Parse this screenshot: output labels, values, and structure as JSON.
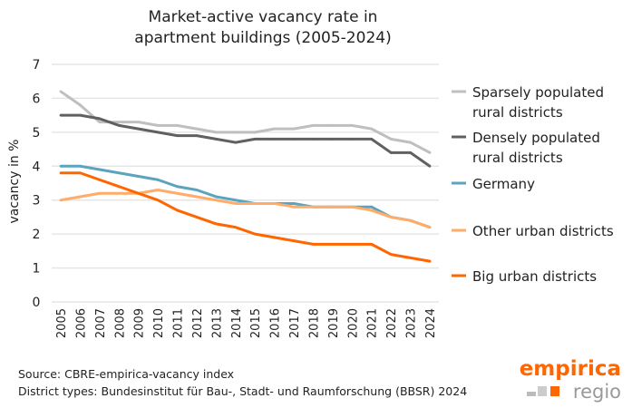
{
  "chart_data": {
    "type": "line",
    "title": "Market-active vacancy rate in apartment buildings (2005-2024)",
    "title_lines": [
      "Market-active vacancy rate in",
      "apartment buildings (2005-2024)"
    ],
    "ylabel": "vacancy in %",
    "ylim": [
      0,
      7
    ],
    "yticks": [
      "0",
      "1",
      "2",
      "3",
      "4",
      "5",
      "6",
      "7"
    ],
    "grid": true,
    "legend_placement": "right",
    "x": [
      "2005",
      "2006",
      "2007",
      "2008",
      "2009",
      "2010",
      "2011",
      "2012",
      "2013",
      "2014",
      "2015",
      "2016",
      "2017",
      "2018",
      "2019",
      "2020",
      "2021",
      "2022",
      "2023",
      "2024"
    ],
    "series": [
      {
        "name": "Sparsely populated rural districts",
        "legend_lines": [
          "Sparsely populated",
          "rural districts"
        ],
        "color": "#bfbfbf",
        "values": [
          6.2,
          5.8,
          5.3,
          5.3,
          5.3,
          5.2,
          5.2,
          5.1,
          5.0,
          5.0,
          5.0,
          5.1,
          5.1,
          5.2,
          5.2,
          5.2,
          5.1,
          4.8,
          4.7,
          4.4
        ]
      },
      {
        "name": "Densely populated rural districts",
        "legend_lines": [
          "Densely populated",
          "rural districts"
        ],
        "color": "#606060",
        "values": [
          5.5,
          5.5,
          5.4,
          5.2,
          5.1,
          5.0,
          4.9,
          4.9,
          4.8,
          4.7,
          4.8,
          4.8,
          4.8,
          4.8,
          4.8,
          4.8,
          4.8,
          4.4,
          4.4,
          4.0
        ]
      },
      {
        "name": "Germany",
        "legend_lines": [
          "Germany"
        ],
        "color": "#5ba3be",
        "values": [
          4.0,
          4.0,
          3.9,
          3.8,
          3.7,
          3.6,
          3.4,
          3.3,
          3.1,
          3.0,
          2.9,
          2.9,
          2.9,
          2.8,
          2.8,
          2.8,
          2.8,
          2.5,
          2.4,
          2.2
        ]
      },
      {
        "name": "Other urban districts",
        "legend_lines": [
          "Other urban districts"
        ],
        "color": "#ffac6a",
        "values": [
          3.0,
          3.1,
          3.2,
          3.2,
          3.2,
          3.3,
          3.2,
          3.1,
          3.0,
          2.9,
          2.9,
          2.9,
          2.8,
          2.8,
          2.8,
          2.8,
          2.7,
          2.5,
          2.4,
          2.2
        ]
      },
      {
        "name": "Big urban districts",
        "legend_lines": [
          "Big urban districts"
        ],
        "color": "#ff6600",
        "values": [
          3.8,
          3.8,
          3.6,
          3.4,
          3.2,
          3.0,
          2.7,
          2.5,
          2.3,
          2.2,
          2.0,
          1.9,
          1.8,
          1.7,
          1.7,
          1.7,
          1.7,
          1.4,
          1.3,
          1.2
        ]
      }
    ]
  },
  "footer": {
    "source": "Source: CBRE-empirica-vacancy index",
    "district_types": "District types: Bundesinstitut für Bau-, Stadt- und Raumforschung (BBSR) 2024"
  },
  "logo": {
    "top": "empirica",
    "bottom": "regio"
  }
}
